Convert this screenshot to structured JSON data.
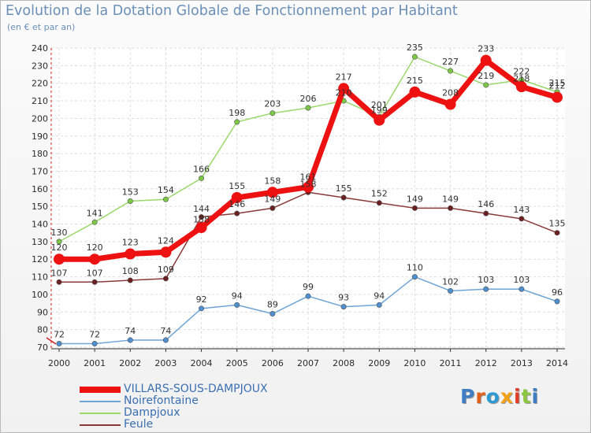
{
  "header": {
    "title": "Evolution de la Dotation Globale de Fonctionnement par Habitant",
    "subtitle": "(en € et par an)"
  },
  "logo": {
    "text": "Proxiti",
    "letter_colors": [
      "#3f7ec4",
      "#e0611d",
      "#2e9ad3",
      "#f2a216",
      "#e23d2a",
      "#8cc63f",
      "#3f7ec4"
    ]
  },
  "chart_data": {
    "type": "line",
    "title": "Evolution de la Dotation Globale de Fonctionnement par Habitant",
    "subtitle": "(en € et par an)",
    "x": [
      "2000",
      "2001",
      "2002",
      "2003",
      "2004",
      "2005",
      "2006",
      "2007",
      "2008",
      "2009",
      "2010",
      "2011",
      "2012",
      "2013",
      "2014"
    ],
    "ylim": [
      70,
      240
    ],
    "yticks": [
      70,
      80,
      90,
      100,
      110,
      120,
      130,
      140,
      150,
      160,
      170,
      180,
      190,
      200,
      210,
      220,
      230,
      240
    ],
    "grid": true,
    "legend_position": "bottom-left",
    "series": [
      {
        "name": "VILLARS-SOUS-DAMPJOUX",
        "color": "#ee1111",
        "emphasis": true,
        "values": [
          120,
          120,
          123,
          124,
          138,
          155,
          158,
          161,
          217,
          199,
          215,
          208,
          233,
          218,
          212
        ],
        "labels": [
          "120",
          "120",
          "123",
          "124",
          "",
          "155",
          "158",
          "",
          "217",
          "",
          "215",
          "208",
          "233",
          "",
          "212"
        ]
      },
      {
        "name": "Noirefontaine",
        "color": "#6ea4d6",
        "marker": "#4e8fd0",
        "values": [
          72,
          72,
          74,
          74,
          92,
          94,
          89,
          99,
          93,
          94,
          110,
          102,
          103,
          103,
          96
        ],
        "labels": [
          "72",
          "72",
          "74",
          "74",
          "92",
          "94",
          "89",
          "99",
          "93",
          "94",
          "110",
          "102",
          "103",
          "103",
          "96"
        ]
      },
      {
        "name": "Dampjoux",
        "color": "#9ad86a",
        "marker": "#7cc846",
        "values": [
          130,
          141,
          153,
          154,
          166,
          198,
          203,
          206,
          210,
          201,
          235,
          227,
          219,
          222,
          215
        ],
        "labels": [
          "130",
          "141",
          "153",
          "154",
          "166",
          "198",
          "203",
          "206",
          "",
          "",
          "235",
          "227",
          "219",
          "",
          "215"
        ]
      },
      {
        "name": "Feule",
        "color": "#8a3a3a",
        "marker": "#6a2020",
        "values": [
          107,
          107,
          108,
          109,
          144,
          146,
          149,
          158,
          155,
          152,
          149,
          149,
          146,
          143,
          135
        ],
        "labels": [
          "107",
          "107",
          "108",
          "109",
          "",
          "146",
          "149",
          "",
          "155",
          "152",
          "149",
          "149",
          "146",
          "143",
          "135"
        ]
      }
    ],
    "overlap_labels": [
      "138",
      "144",
      "161",
      "158",
      "210",
      "199",
      "201",
      "222",
      "218"
    ]
  }
}
